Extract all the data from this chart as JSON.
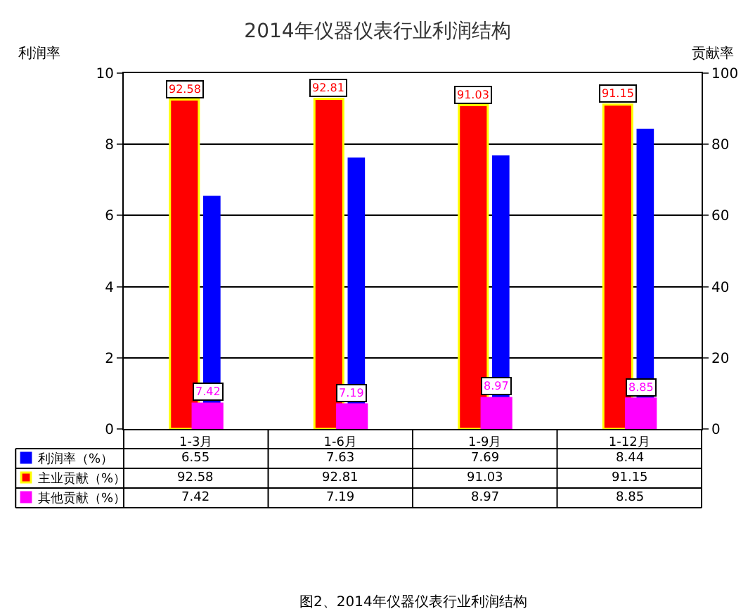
{
  "chart_data": {
    "type": "bar",
    "title": "2014年仪器仪表行业利润结构",
    "ylabel": "利润率",
    "y2label": "贡献率",
    "categories": [
      "1-3月",
      "1-6月",
      "1-9月",
      "1-12月"
    ],
    "series": [
      {
        "name": "利润率（%）",
        "color": "#0000ff",
        "values": [
          6.55,
          7.63,
          7.69,
          8.44
        ]
      },
      {
        "name": "主业贡献（%）",
        "color": "#ff0000",
        "axis": "y2",
        "values": [
          92.58,
          92.81,
          91.03,
          91.15
        ]
      },
      {
        "name": "其他贡献（%）",
        "color": "#ff00ff",
        "axis": "y2",
        "values": [
          7.42,
          7.19,
          8.97,
          8.85
        ]
      }
    ],
    "ylim": [
      0,
      10
    ],
    "yticks": [
      0,
      2,
      4,
      6,
      8,
      10
    ],
    "y2lim": [
      0,
      100
    ],
    "y2ticks": [
      0,
      20,
      40,
      60,
      80,
      100
    ],
    "grid": "y",
    "legend": "bottom",
    "data_labels": true,
    "annotations": [
      "92.58",
      "92.81",
      "91.03",
      "91.15",
      "7.42",
      "7.19",
      "8.97",
      "8.85",
      "图2、2014年仪器仪表行业利润结构"
    ]
  }
}
